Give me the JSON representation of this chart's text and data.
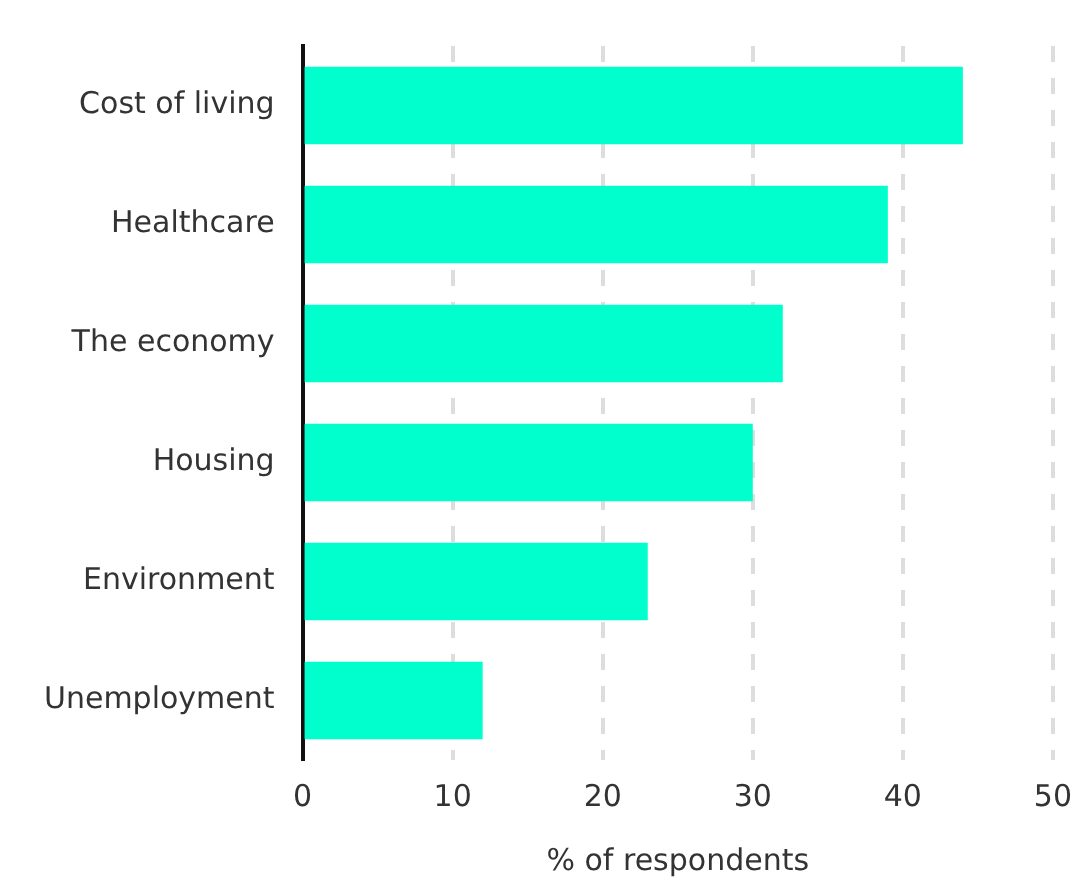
{
  "chart_data": {
    "type": "bar",
    "orientation": "horizontal",
    "categories": [
      "Cost of living",
      "Healthcare",
      "The economy",
      "Housing",
      "Environment",
      "Unemployment"
    ],
    "values": [
      44,
      39,
      32,
      30,
      23,
      12
    ],
    "color": "#00ffcc",
    "xlim": [
      0,
      50
    ],
    "xticks": [
      0,
      10,
      20,
      30,
      40,
      50
    ],
    "xlabel": "% of respondents",
    "grid": "x",
    "legend": false
  }
}
